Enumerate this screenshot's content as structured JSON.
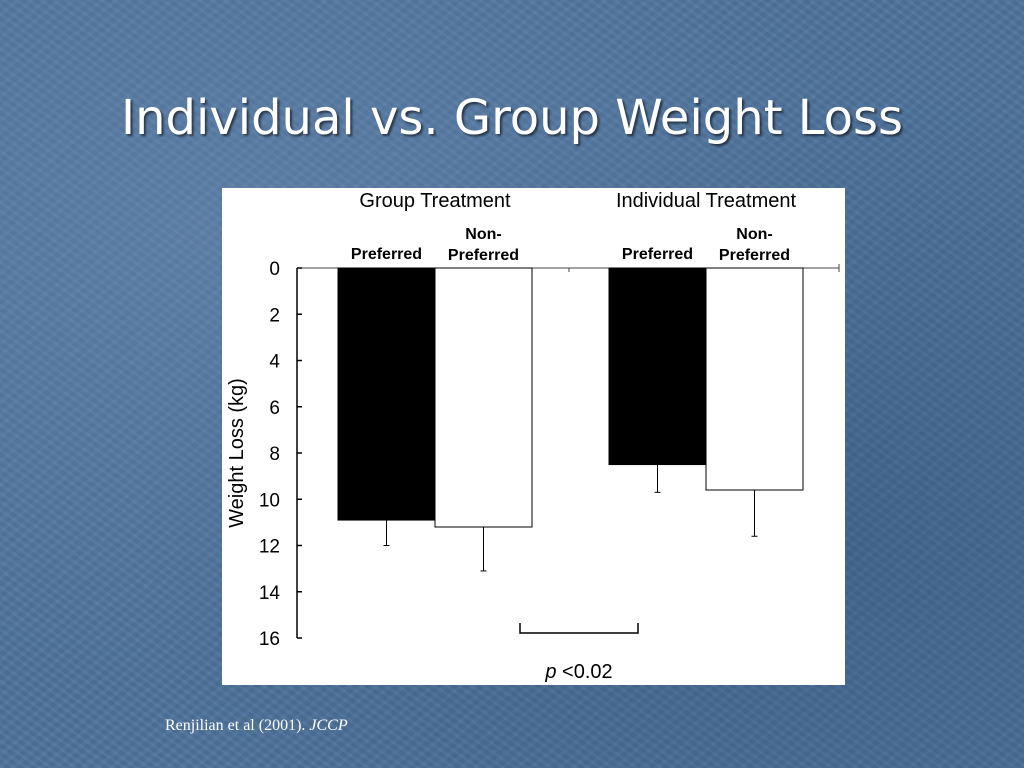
{
  "slide": {
    "title": "Individual vs. Group Weight Loss",
    "citation_text": "Renjilian et al (2001). ",
    "citation_journal": "JCCP"
  },
  "chart_data": {
    "type": "bar",
    "ylabel": "Weight Loss (kg)",
    "ylim": [
      0,
      16
    ],
    "y_ticks": [
      0,
      2,
      4,
      6,
      8,
      10,
      12,
      14,
      16
    ],
    "y_inverted": true,
    "groups": [
      {
        "label": "Group Treatment",
        "bars": [
          {
            "label_lines": [
              "Preferred"
            ],
            "value": 10.9,
            "error": 1.1,
            "fill": "#000000"
          },
          {
            "label_lines": [
              "Non-",
              "Preferred"
            ],
            "value": 11.2,
            "error": 1.9,
            "fill": "#ffffff"
          }
        ]
      },
      {
        "label": "Individual Treatment",
        "bars": [
          {
            "label_lines": [
              "Preferred"
            ],
            "value": 8.5,
            "error": 1.2,
            "fill": "#000000"
          },
          {
            "label_lines": [
              "Non-",
              "Preferred"
            ],
            "value": 9.6,
            "error": 2.0,
            "fill": "#ffffff"
          }
        ]
      }
    ],
    "annotation": {
      "p_symbol": "p",
      "text": " <0.02"
    }
  }
}
